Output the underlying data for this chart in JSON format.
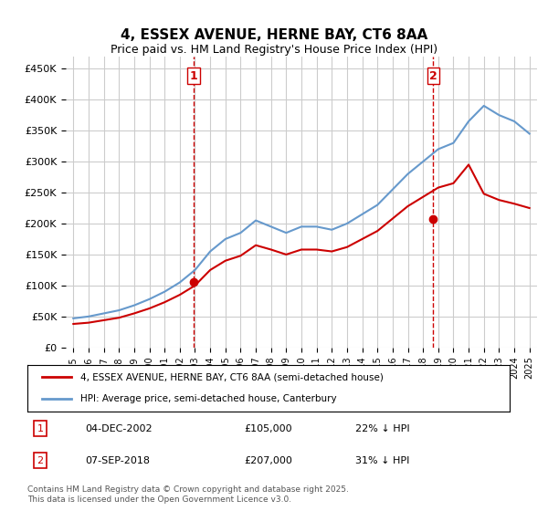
{
  "title": "4, ESSEX AVENUE, HERNE BAY, CT6 8AA",
  "subtitle": "Price paid vs. HM Land Registry's House Price Index (HPI)",
  "footer": "Contains HM Land Registry data © Crown copyright and database right 2025.\nThis data is licensed under the Open Government Licence v3.0.",
  "legend_line1": "4, ESSEX AVENUE, HERNE BAY, CT6 8AA (semi-detached house)",
  "legend_line2": "HPI: Average price, semi-detached house, Canterbury",
  "sale1_label": "1",
  "sale1_date": "04-DEC-2002",
  "sale1_price": "£105,000",
  "sale1_hpi": "22% ↓ HPI",
  "sale2_label": "2",
  "sale2_date": "07-SEP-2018",
  "sale2_price": "£207,000",
  "sale2_hpi": "31% ↓ HPI",
  "red_color": "#cc0000",
  "blue_color": "#6699cc",
  "vline_color": "#cc0000",
  "grid_color": "#cccccc",
  "bg_color": "#ffffff",
  "ylim": [
    0,
    470000
  ],
  "yticks": [
    0,
    50000,
    100000,
    150000,
    200000,
    250000,
    300000,
    350000,
    400000,
    450000
  ],
  "sale1_x": 2002.92,
  "sale1_y": 105000,
  "sale2_x": 2018.68,
  "sale2_y": 207000,
  "hpi_years": [
    1995,
    1996,
    1997,
    1998,
    1999,
    2000,
    2001,
    2002,
    2003,
    2004,
    2005,
    2006,
    2007,
    2008,
    2009,
    2010,
    2011,
    2012,
    2013,
    2014,
    2015,
    2016,
    2017,
    2018,
    2019,
    2020,
    2021,
    2022,
    2023,
    2024,
    2025
  ],
  "hpi_values": [
    47000,
    50000,
    55000,
    60000,
    68000,
    78000,
    90000,
    105000,
    125000,
    155000,
    175000,
    185000,
    205000,
    195000,
    185000,
    195000,
    195000,
    190000,
    200000,
    215000,
    230000,
    255000,
    280000,
    300000,
    320000,
    330000,
    365000,
    390000,
    375000,
    365000,
    345000
  ],
  "price_years": [
    1995,
    1996,
    1997,
    1998,
    1999,
    2000,
    2001,
    2002,
    2003,
    2004,
    2005,
    2006,
    2007,
    2008,
    2009,
    2010,
    2011,
    2012,
    2013,
    2014,
    2015,
    2016,
    2017,
    2018,
    2019,
    2020,
    2021,
    2022,
    2023,
    2024,
    2025
  ],
  "price_values": [
    38000,
    40000,
    44000,
    48000,
    55000,
    63000,
    73000,
    85000,
    100000,
    125000,
    140000,
    148000,
    165000,
    158000,
    150000,
    158000,
    158000,
    155000,
    162000,
    175000,
    188000,
    208000,
    228000,
    243000,
    258000,
    265000,
    295000,
    248000,
    238000,
    232000,
    225000
  ],
  "xtick_years": [
    1995,
    1996,
    1997,
    1998,
    1999,
    2000,
    2001,
    2002,
    2003,
    2004,
    2005,
    2006,
    2007,
    2008,
    2009,
    2010,
    2011,
    2012,
    2013,
    2014,
    2015,
    2016,
    2017,
    2018,
    2019,
    2020,
    2021,
    2022,
    2023,
    2024,
    2025
  ]
}
